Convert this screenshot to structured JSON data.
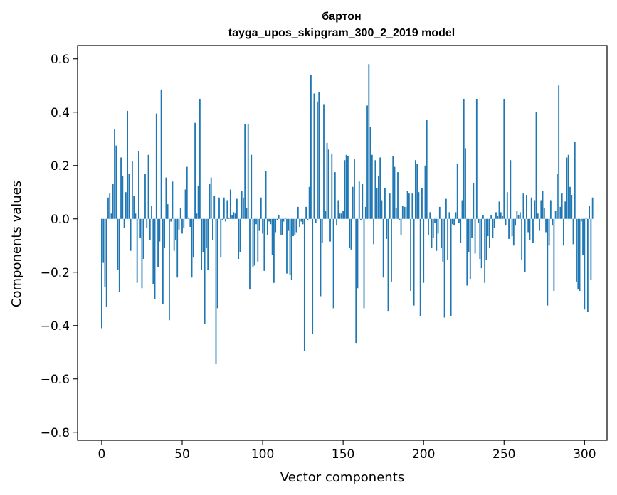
{
  "chart_data": {
    "type": "bar",
    "title": "бартон",
    "subtitle": "tayga_upos_skipgram_300_2_2019 model",
    "xlabel": "Vector components",
    "ylabel": "Components values",
    "xlim": [
      -15,
      314
    ],
    "ylim": [
      -0.83,
      0.65
    ],
    "xticks": [
      0,
      50,
      100,
      150,
      200,
      250,
      300
    ],
    "xtick_labels": [
      "0",
      "50",
      "100",
      "150",
      "200",
      "250",
      "300"
    ],
    "yticks": [
      -0.8,
      -0.6,
      -0.4,
      -0.2,
      0.0,
      0.2,
      0.4,
      0.6
    ],
    "ytick_labels": [
      "−0.8",
      "−0.6",
      "−0.4",
      "−0.2",
      "0.0",
      "0.2",
      "0.4",
      "0.6"
    ],
    "bar_color": "#1f77b4",
    "values": [
      -0.41,
      -0.165,
      -0.255,
      -0.33,
      0.08,
      0.095,
      0.02,
      0.13,
      0.335,
      0.275,
      -0.19,
      -0.275,
      0.23,
      0.16,
      -0.035,
      0.1,
      0.405,
      0.17,
      -0.12,
      0.215,
      0.085,
      0.02,
      -0.24,
      0.255,
      -0.07,
      -0.26,
      -0.15,
      0.17,
      -0.035,
      0.24,
      -0.08,
      0.05,
      -0.245,
      -0.3,
      0.395,
      -0.18,
      -0.085,
      0.485,
      -0.32,
      -0.11,
      0.155,
      0.055,
      -0.38,
      -0.01,
      0.14,
      -0.12,
      -0.08,
      -0.22,
      -0.04,
      0.04,
      -0.055,
      -0.035,
      0.11,
      0.195,
      0.005,
      -0.03,
      -0.22,
      -0.145,
      0.36,
      0.02,
      0.125,
      0.45,
      -0.19,
      -0.125,
      -0.395,
      -0.11,
      -0.19,
      0.13,
      0.155,
      -0.08,
      0.085,
      -0.545,
      -0.335,
      0.08,
      -0.145,
      -0.005,
      0.08,
      -0.01,
      0.07,
      0.005,
      0.11,
      0.015,
      0.025,
      0.02,
      0.075,
      -0.15,
      -0.125,
      0.105,
      0.08,
      0.355,
      0.04,
      0.355,
      -0.265,
      0.24,
      -0.18,
      -0.175,
      -0.02,
      -0.16,
      -0.045,
      0.08,
      -0.055,
      -0.195,
      0.18,
      -0.06,
      -0.01,
      -0.02,
      -0.135,
      -0.24,
      -0.05,
      -0.005,
      0.015,
      -0.06,
      -0.06,
      -0.01,
      0.005,
      -0.205,
      -0.045,
      -0.21,
      -0.23,
      -0.065,
      -0.06,
      -0.05,
      0.045,
      -0.03,
      -0.01,
      -0.02,
      -0.495,
      0.045,
      -0.005,
      0.12,
      0.54,
      -0.43,
      0.47,
      -0.015,
      0.44,
      0.475,
      -0.29,
      -0.09,
      0.43,
      0.03,
      0.285,
      0.26,
      -0.085,
      0.245,
      -0.335,
      0.175,
      -0.025,
      0.07,
      0.02,
      0.02,
      0.03,
      0.22,
      0.24,
      0.235,
      -0.11,
      -0.115,
      0.12,
      0.225,
      -0.465,
      -0.26,
      0.14,
      -0.005,
      0.13,
      -0.335,
      0.045,
      0.425,
      0.58,
      0.345,
      0.24,
      -0.095,
      0.22,
      0.115,
      0.16,
      0.23,
      0.07,
      -0.22,
      0.115,
      -0.075,
      -0.345,
      0.095,
      -0.235,
      0.235,
      0.195,
      0.04,
      0.175,
      -0.005,
      -0.06,
      0.05,
      0.045,
      0.045,
      0.105,
      0.095,
      -0.27,
      0.095,
      -0.325,
      0.22,
      0.205,
      0.1,
      -0.365,
      0.115,
      -0.24,
      0.2,
      0.37,
      -0.06,
      0.025,
      -0.11,
      -0.07,
      -0.015,
      -0.12,
      -0.055,
      0.045,
      -0.11,
      -0.16,
      -0.37,
      0.075,
      -0.155,
      0.025,
      -0.365,
      -0.02,
      -0.025,
      0.025,
      0.205,
      -0.015,
      -0.09,
      0.07,
      0.45,
      0.265,
      -0.25,
      -0.125,
      -0.225,
      -0.07,
      0.135,
      -0.13,
      0.45,
      -0.015,
      -0.15,
      -0.185,
      0.015,
      -0.24,
      -0.155,
      -0.065,
      -0.11,
      0.015,
      -0.07,
      -0.035,
      0.025,
      0.01,
      0.065,
      0.025,
      0.01,
      0.45,
      -0.025,
      0.1,
      -0.075,
      0.22,
      -0.065,
      -0.1,
      -0.025,
      0.03,
      0.015,
      0.025,
      -0.155,
      0.095,
      -0.2,
      0.09,
      -0.05,
      -0.08,
      0.08,
      -0.09,
      0.07,
      0.4,
      0.02,
      -0.045,
      0.07,
      0.105,
      0.04,
      -0.05,
      -0.325,
      -0.1,
      0.07,
      -0.025,
      -0.27,
      0.03,
      0.17,
      0.5,
      0.045,
      0.095,
      -0.1,
      0.065,
      0.23,
      0.24,
      0.12,
      0.09,
      -0.095,
      0.29,
      -0.235,
      -0.265,
      -0.27,
      -0.01,
      -0.135,
      -0.34,
      0.005,
      -0.35,
      0.05,
      -0.23,
      0.08
    ]
  }
}
